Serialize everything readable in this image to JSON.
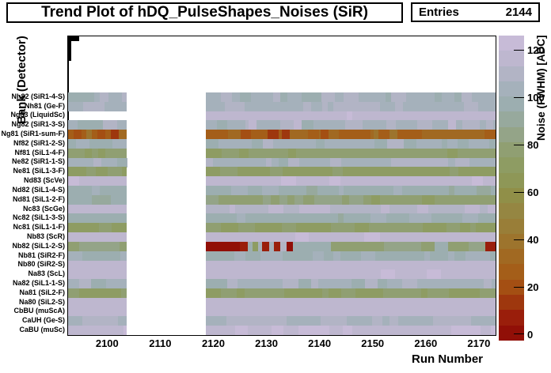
{
  "header": {
    "title": "Trend Plot of hDQ_PulseShapes_Noises (SiR)"
  },
  "stats_box": {
    "label": "Entries",
    "value": "2144"
  },
  "chart_data": {
    "type": "heatmap",
    "title": "Trend Plot of hDQ_PulseShapes_Noises (SiR)",
    "entries": 2144,
    "xlabel": "Run Number",
    "ylabel": "Bank (Detector)",
    "zlabel": "Noise (FWHM) [ADC]",
    "x_range": [
      2092.5,
      2173
    ],
    "x_major_ticks": [
      2100,
      2110,
      2120,
      2130,
      2140,
      2150,
      2160,
      2170
    ],
    "x_minor_tick_step": 2,
    "z_range": [
      0,
      126
    ],
    "z_ticks": [
      0,
      20,
      40,
      60,
      80,
      100,
      120
    ],
    "contour_levels": 20,
    "grid": false,
    "legend_position": "right-colorbar",
    "data_blocks": [
      [
        2092.5,
        2103.5
      ],
      [
        2118.5,
        2173
      ]
    ],
    "gap_runs": [
      2103.5,
      2118.5
    ],
    "empty_top_rows": 6,
    "palette": [
      [
        0,
        "#cabdda"
      ],
      [
        7,
        "#c3b9d3"
      ],
      [
        14,
        "#b5b4c8"
      ],
      [
        21,
        "#a7b2bd"
      ],
      [
        28,
        "#9caeb1"
      ],
      [
        35,
        "#97a99c"
      ],
      [
        42,
        "#93a385"
      ],
      [
        50,
        "#8e9d68"
      ],
      [
        58,
        "#8d9a5c"
      ],
      [
        66,
        "#908f48"
      ],
      [
        74,
        "#968440"
      ],
      [
        82,
        "#9b7a33"
      ],
      [
        90,
        "#a06b24"
      ],
      [
        98,
        "#a45d18"
      ],
      [
        105,
        "#a44c12"
      ],
      [
        112,
        "#9c300d"
      ],
      [
        119,
        "#99140a"
      ],
      [
        126,
        "#8a0a04"
      ]
    ],
    "rows": [
      {
        "label": "Nh82 (SiR1-4-S)",
        "base_left": 22,
        "base_right": 22,
        "var": 6
      },
      {
        "label": "Nh81 (Ge-F)",
        "base_left": 19,
        "base_right": 19,
        "var": 2
      },
      {
        "label": "Ng83 (LiquidSc)",
        "base_left": 9,
        "base_right": 9,
        "var": 3,
        "missing_left": true
      },
      {
        "label": "Ng82 (SiR1-3-S)",
        "base_left": 20,
        "base_right": 20,
        "var": 7,
        "segments": [
          [
            2126.5,
            2128,
            11
          ],
          [
            2135,
            2136.5,
            11
          ],
          [
            2164,
            2165.5,
            12
          ]
        ]
      },
      {
        "label": "Ng81 (SiR1-sum-F)",
        "base_left": 94,
        "base_right": 94,
        "var": 7,
        "segments": [
          [
            2093.5,
            2095,
            104
          ],
          [
            2096,
            2097,
            86
          ],
          [
            2098,
            2099.5,
            106
          ],
          [
            2100.5,
            2102,
            108
          ],
          [
            2125,
            2127,
            102
          ],
          [
            2130,
            2132.2,
            112
          ],
          [
            2132.7,
            2134.2,
            110
          ],
          [
            2140,
            2141.5,
            103
          ],
          [
            2150,
            2151,
            86
          ]
        ]
      },
      {
        "label": "Nf82 (SiR1-2-S)",
        "base_left": 23,
        "base_right": 23,
        "var": 5
      },
      {
        "label": "Nf81 (SiL1-4-F)",
        "base_left": 48,
        "base_right": 48,
        "var": 4
      },
      {
        "label": "Ne82 (SiR1-1-S)",
        "base_left": 21,
        "base_right": 21,
        "var": 5
      },
      {
        "label": "Ne81 (SiL1-3-F)",
        "base_left": 52,
        "base_right": 52,
        "var": 4
      },
      {
        "label": "Nd83 (ScVe)",
        "base_left": 8,
        "base_right": 8,
        "var": 2
      },
      {
        "label": "Nd82 (SiL1-4-S)",
        "base_left": 28,
        "base_right": 28,
        "var": 5
      },
      {
        "label": "Nd81 (SiL1-2-F)",
        "base_left": 32,
        "base_right": 46,
        "var": 5
      },
      {
        "label": "Nc83 (ScGe)",
        "base_left": 10,
        "base_right": 13,
        "var": 3
      },
      {
        "label": "Nc82 (SiL1-3-S)",
        "base_left": 28,
        "base_right": 28,
        "var": 4
      },
      {
        "label": "Nc81 (SiL1-1-F)",
        "base_left": 50,
        "base_right": 50,
        "var": 4
      },
      {
        "label": "Nb83 (ScR)",
        "base_left": 8,
        "base_right": 8,
        "var": 2
      },
      {
        "label": "Nb82 (SiL1-2-S)",
        "base_left": 45,
        "base_right": 45,
        "var": 5,
        "segments": [
          [
            2118.5,
            2123,
            120
          ],
          [
            2123,
            2124.8,
            126
          ],
          [
            2124.8,
            2126.3,
            118
          ],
          [
            2126.3,
            2127.3,
            30
          ],
          [
            2127.3,
            2128.3,
            52
          ],
          [
            2128.3,
            2129,
            24
          ],
          [
            2129,
            2130.4,
            119
          ],
          [
            2130.4,
            2131.3,
            24
          ],
          [
            2131.3,
            2132.5,
            116
          ],
          [
            2132.5,
            2133.6,
            18
          ],
          [
            2133.6,
            2134.8,
            121
          ],
          [
            2134.8,
            2138,
            28
          ],
          [
            2138,
            2142,
            30
          ],
          [
            2142,
            2147,
            50
          ],
          [
            2147,
            2152,
            46
          ],
          [
            2152,
            2156,
            44
          ],
          [
            2156,
            2159,
            40
          ],
          [
            2159,
            2161.5,
            46
          ],
          [
            2161.5,
            2164,
            28
          ],
          [
            2164,
            2168,
            48
          ],
          [
            2168,
            2171,
            42
          ],
          [
            2171,
            2173,
            114
          ]
        ]
      },
      {
        "label": "Nb81 (SiR2-F)",
        "base_left": 26,
        "base_right": 26,
        "var": 4
      },
      {
        "label": "Nb80 (SiR2-S)",
        "base_left": 10,
        "base_right": 10,
        "var": 2
      },
      {
        "label": "Na83 (ScL)",
        "base_left": 8,
        "base_right": 8,
        "var": 2
      },
      {
        "label": "Na82 (SiL1-1-S)",
        "base_left": 22,
        "base_right": 22,
        "var": 5
      },
      {
        "label": "Na81 (SiL2-F)",
        "base_left": 50,
        "base_right": 50,
        "var": 3
      },
      {
        "label": "Na80 (SiL2-S)",
        "base_left": 10,
        "base_right": 10,
        "var": 2
      },
      {
        "label": "CbBU (muScA)",
        "base_left": 8,
        "base_right": 8,
        "var": 2
      },
      {
        "label": "CaUH (Ge-S)",
        "base_left": 19,
        "base_right": 19,
        "var": 3
      },
      {
        "label": "CaBU (muSc)",
        "base_left": 7,
        "base_right": 7,
        "var": 2
      }
    ]
  }
}
